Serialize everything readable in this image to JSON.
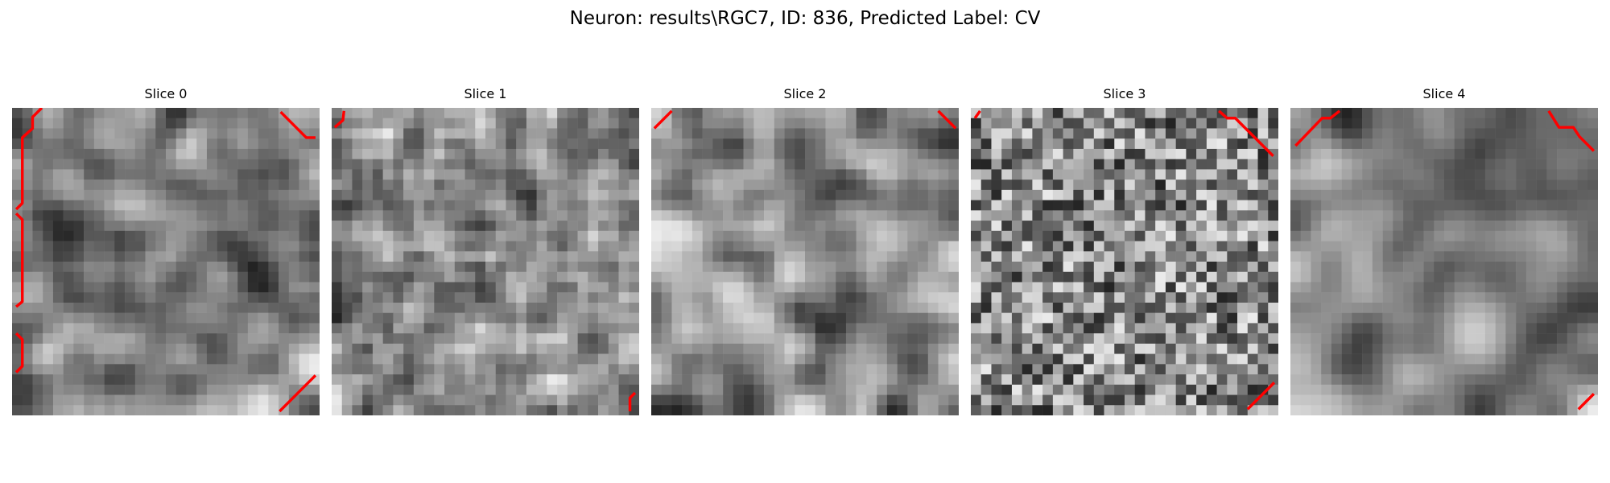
{
  "figure": {
    "title": "Neuron: results\\RGC7, ID: 836, Predicted Label: CV"
  },
  "panels": [
    {
      "title": "Slice 0",
      "seed": 11,
      "smooth": 2
    },
    {
      "title": "Slice 1",
      "seed": 23,
      "smooth": 1
    },
    {
      "title": "Slice 2",
      "seed": 37,
      "smooth": 2
    },
    {
      "title": "Slice 3",
      "seed": 41,
      "smooth": 0
    },
    {
      "title": "Slice 4",
      "seed": 59,
      "smooth": 3
    }
  ],
  "colors": {
    "contour": "#ff0000",
    "background": "#ffffff"
  },
  "image": {
    "grid_cells": 30,
    "colormap": "grayscale"
  }
}
